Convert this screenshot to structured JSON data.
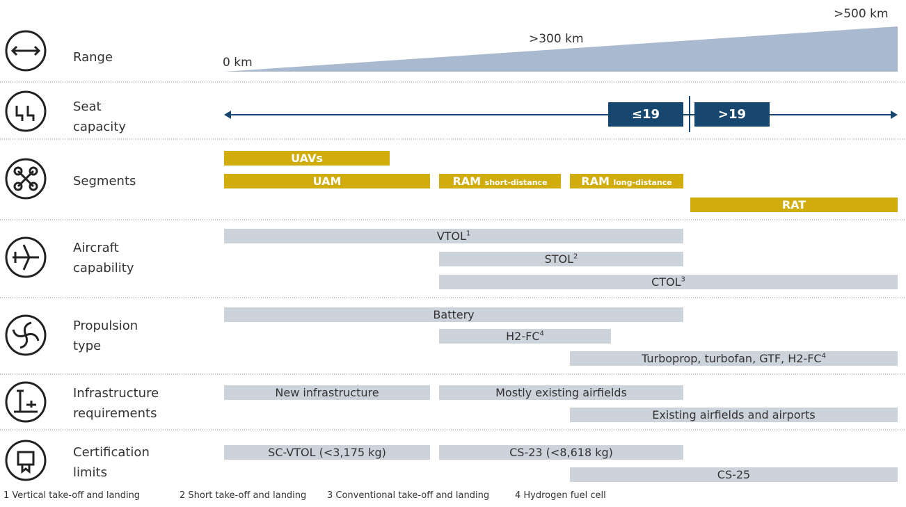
{
  "range": {
    "label": [
      "Range"
    ],
    "start": "0 km",
    "mid": ">300 km",
    "end": ">500 km"
  },
  "seats": {
    "label": [
      "Seat",
      "capacity"
    ],
    "low": "≤19",
    "high": ">19"
  },
  "rows": [
    {
      "label": [
        "Segments"
      ],
      "bars": [
        {
          "text": "UAVs"
        },
        {
          "text": "UAM"
        },
        {
          "text": "RAM",
          "small": "short-distance"
        },
        {
          "text": "RAM",
          "small": "long-distance"
        },
        {
          "text": "RAT"
        }
      ]
    },
    {
      "label": [
        "Aircraft",
        "capability"
      ],
      "bars": [
        {
          "text": "VTOL",
          "sup": "1"
        },
        {
          "text": "STOL",
          "sup": "2"
        },
        {
          "text": "CTOL",
          "sup": "3"
        }
      ]
    },
    {
      "label": [
        "Propulsion",
        "type"
      ],
      "bars": [
        {
          "text": "Battery"
        },
        {
          "text": "H2-FC",
          "sup": "4"
        },
        {
          "text": "Turboprop, turbofan, GTF, H2-FC",
          "sup": "4"
        }
      ]
    },
    {
      "label": [
        "Infrastructure",
        "requirements"
      ],
      "bars": [
        {
          "text": "New infrastructure"
        },
        {
          "text": "Mostly existing airfields"
        },
        {
          "text": "Existing airfields and airports"
        }
      ]
    },
    {
      "label": [
        "Certification",
        "limits"
      ],
      "bars": [
        {
          "text": "SC-VTOL (<3,175 kg)"
        },
        {
          "text": "CS-23 (<8,618 kg)"
        },
        {
          "text": "CS-25"
        }
      ]
    }
  ],
  "footnotes": [
    "1 Vertical take-off and landing",
    "2 Short take-off and landing",
    "3 Conventional take-off and landing",
    "4 Hydrogen fuel cell"
  ]
}
